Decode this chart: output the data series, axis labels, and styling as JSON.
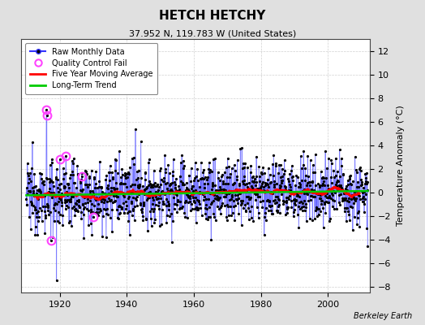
{
  "title": "HETCH HETCHY",
  "subtitle": "37.952 N, 119.783 W (United States)",
  "ylabel": "Temperature Anomaly (°C)",
  "credit": "Berkeley Earth",
  "year_start": 1910,
  "year_end": 2012,
  "ylim": [
    -8.5,
    13.0
  ],
  "yticks": [
    -8,
    -6,
    -4,
    -2,
    0,
    2,
    4,
    6,
    8,
    10,
    12
  ],
  "xticks": [
    1920,
    1940,
    1960,
    1980,
    2000
  ],
  "bg_color": "#e0e0e0",
  "plot_bg_color": "#ffffff",
  "raw_color": "#3333ff",
  "stem_color": "#6666ff",
  "moving_avg_color": "#ff0000",
  "trend_color": "#00cc00",
  "qc_fail_color": "#ff44ff",
  "dot_color": "#000000",
  "title_fontsize": 11,
  "subtitle_fontsize": 8,
  "tick_fontsize": 8,
  "ylabel_fontsize": 8,
  "legend_fontsize": 7,
  "credit_fontsize": 7
}
